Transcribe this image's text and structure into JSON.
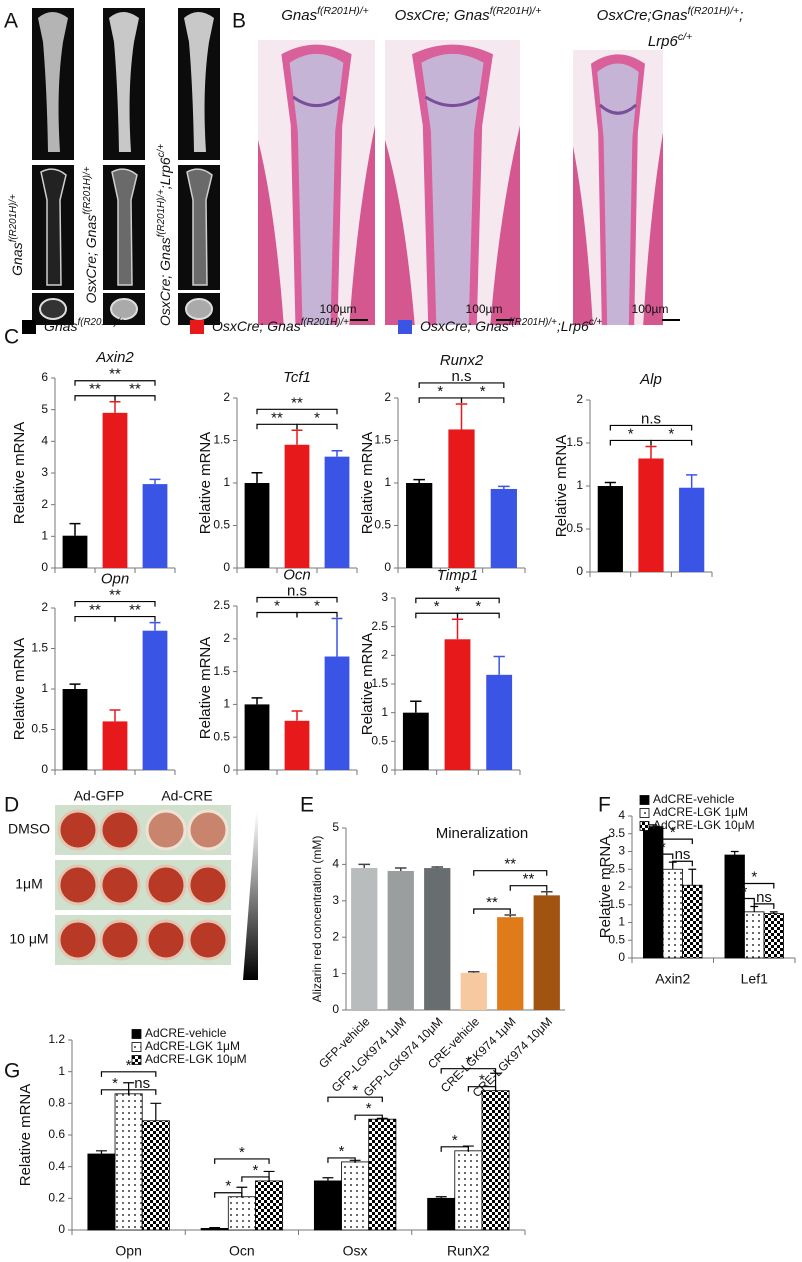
{
  "panel_labels": [
    "A",
    "B",
    "C",
    "D",
    "E",
    "F",
    "G"
  ],
  "panel_a": {
    "labels": [
      [
        "Gnas",
        "f(R201H)/+"
      ],
      [
        "OsxCre; Gnas",
        "f(R201H)/+"
      ],
      [
        "OsxCre; Gnas",
        "f(R201H)/+",
        ";Lrp6",
        "c/+"
      ]
    ]
  },
  "panel_b": {
    "captions": [
      [
        [
          "Gnas",
          "f(R201H)/+"
        ]
      ],
      [
        [
          "OsxCre; Gnas",
          "f(R201H)/+"
        ]
      ],
      [
        [
          "OsxCre;Gnas",
          "f(R201H)/+",
          ";"
        ],
        [
          "Lrp6",
          "c/+"
        ]
      ]
    ],
    "scale_bar": "100µm"
  },
  "panel_c": {
    "legend": [
      {
        "name": [
          "Gnas",
          "f(R201H)/+"
        ],
        "color": "#000000"
      },
      {
        "name": [
          "OsxCre; Gnas",
          "f(R201H)/+"
        ],
        "color": "#e8191b"
      },
      {
        "name": [
          "OsxCre; Gnas",
          "f(R201H)/+",
          ";Lrp6",
          "c/+"
        ],
        "color": "#3a55e6"
      }
    ]
  },
  "panel_d": {
    "columns": [
      "Ad-GFP",
      "Ad-CRE"
    ],
    "rows": [
      "DMSO",
      "1μM",
      "10 μM"
    ]
  },
  "chart_data": [
    {
      "type": "bar",
      "title": "Axin2",
      "y_label": "Relative mRNA",
      "values": [
        1.02,
        4.9,
        2.65
      ],
      "errors": [
        0.38,
        0.35,
        0.15
      ],
      "ylim": [
        0,
        6
      ],
      "yticks": [
        0,
        1,
        2,
        3,
        4,
        5,
        6
      ],
      "brackets": [
        "**",
        "**",
        "**"
      ]
    },
    {
      "type": "bar",
      "title": "Tcf1",
      "y_label": "Relative mRNA",
      "values": [
        1.0,
        1.45,
        1.31
      ],
      "errors": [
        0.12,
        0.17,
        0.07
      ],
      "ylim": [
        0,
        2
      ],
      "yticks": [
        0,
        0.5,
        1,
        1.5,
        2
      ],
      "brackets": [
        "**",
        "*",
        "**"
      ]
    },
    {
      "type": "bar",
      "title": "Runx2",
      "y_label": "Relative mRNA",
      "values": [
        1.0,
        1.63,
        0.93
      ],
      "errors": [
        0.04,
        0.3,
        0.03
      ],
      "ylim": [
        0,
        2
      ],
      "yticks": [
        0,
        0.5,
        1,
        1.5,
        2
      ],
      "brackets": [
        "*",
        "*",
        "n.s"
      ]
    },
    {
      "type": "bar",
      "title": "Alp",
      "y_label": "Relative mRNA",
      "values": [
        1.0,
        1.32,
        0.98
      ],
      "errors": [
        0.04,
        0.14,
        0.15
      ],
      "ylim": [
        0,
        2
      ],
      "yticks": [
        0,
        0.5,
        1,
        1.5,
        2
      ],
      "brackets": [
        "*",
        "*",
        "n.s"
      ]
    },
    {
      "type": "bar",
      "title": "Opn",
      "y_label": "Relative mRNA",
      "values": [
        1.0,
        0.6,
        1.72
      ],
      "errors": [
        0.06,
        0.14,
        0.1
      ],
      "ylim": [
        0,
        2
      ],
      "yticks": [
        0,
        0.5,
        1,
        1.5,
        2
      ],
      "brackets": [
        "**",
        "**",
        "**"
      ]
    },
    {
      "type": "bar",
      "title": "Ocn",
      "y_label": "Relative mRNA",
      "values": [
        1.0,
        0.75,
        1.73
      ],
      "errors": [
        0.1,
        0.15,
        0.58
      ],
      "ylim": [
        0,
        2.5
      ],
      "yticks": [
        0,
        0.5,
        1,
        1.5,
        2,
        2.5
      ],
      "brackets": [
        "*",
        "*",
        "n.s"
      ]
    },
    {
      "type": "bar",
      "title": "Timp1",
      "y_label": "Relative mRNA",
      "values": [
        1.0,
        2.28,
        1.66
      ],
      "errors": [
        0.2,
        0.35,
        0.32
      ],
      "ylim": [
        0,
        3
      ],
      "yticks": [
        0,
        0.5,
        1,
        1.5,
        2,
        2.5,
        3
      ],
      "brackets": [
        "*",
        "*",
        "*"
      ]
    },
    {
      "type": "bar",
      "title": "Mineralization",
      "y_label": "Alizarin red concentration (mM)",
      "categories": [
        "GFP-vehicle",
        "GFP-LGK974 1μM",
        "GFP-LGK974 10μM",
        "CRE-vehicle",
        "CRE-LGK974 1μM",
        "CRE-LGK974 10μM"
      ],
      "values": [
        3.9,
        3.82,
        3.9,
        1.02,
        2.55,
        3.15
      ],
      "errors": [
        0.1,
        0.08,
        0.03,
        0.03,
        0.06,
        0.1
      ],
      "colors": [
        "#b8bcbc",
        "#9a9e9e",
        "#686e70",
        "#f7c9a0",
        "#e07b1a",
        "#a0540f"
      ],
      "ylim": [
        0,
        5
      ],
      "yticks": [
        0,
        1,
        2,
        3,
        4,
        5
      ],
      "brackets": [
        "**",
        "**",
        "**"
      ]
    },
    {
      "type": "grouped_bar",
      "y_label": "Relative mRNA",
      "categories": [
        "Axin2",
        "Lef1"
      ],
      "legend": "upper left",
      "series": [
        {
          "name": "AdCRE-vehicle",
          "color": "#000000",
          "pattern": "solid",
          "values": [
            3.7,
            2.9
          ],
          "errors": [
            0.05,
            0.1
          ]
        },
        {
          "name": "AdCRE-LGK 1μM",
          "color": "#ffffff",
          "pattern": "dots",
          "values": [
            2.5,
            1.3
          ],
          "errors": [
            0.2,
            0.15
          ]
        },
        {
          "name": "AdCRE-LGK 10μM",
          "color": "#ffffff",
          "pattern": "checker",
          "values": [
            2.05,
            1.25
          ],
          "errors": [
            0.45,
            0.05
          ]
        }
      ],
      "ylim": [
        0,
        4
      ],
      "yticks": [
        0,
        0.5,
        1,
        1.5,
        2,
        2.5,
        3,
        3.5,
        4
      ],
      "brackets": [
        [
          "*",
          "*",
          "ns"
        ],
        [
          "*",
          "*",
          "ns"
        ]
      ]
    },
    {
      "type": "grouped_bar",
      "y_label": "Relative mRNA",
      "categories": [
        "Opn",
        "Ocn",
        "Osx",
        "RunX2"
      ],
      "legend": "upper left",
      "series": [
        {
          "name": "AdCRE-vehicle",
          "color": "#000000",
          "pattern": "solid",
          "values": [
            0.48,
            0.01,
            0.31,
            0.2
          ],
          "errors": [
            0.02,
            0.005,
            0.02,
            0.01
          ]
        },
        {
          "name": "AdCRE-LGK 1μM",
          "color": "#ffffff",
          "pattern": "dots",
          "values": [
            0.86,
            0.21,
            0.43,
            0.5
          ],
          "errors": [
            0.07,
            0.06,
            0.01,
            0.03
          ]
        },
        {
          "name": "AdCRE-LGK 10μM",
          "color": "#ffffff",
          "pattern": "checker",
          "values": [
            0.69,
            0.31,
            0.7,
            0.88
          ],
          "errors": [
            0.11,
            0.06,
            0.005,
            0.11
          ]
        }
      ],
      "ylim": [
        0,
        1.2
      ],
      "yticks": [
        0,
        0.2,
        0.4,
        0.6,
        0.8,
        1,
        1.2
      ],
      "brackets": [
        [
          "*",
          "*",
          "ns"
        ],
        [
          "*",
          "*",
          "*"
        ],
        [
          "*",
          "*",
          "*"
        ],
        [
          "*",
          "*",
          "*"
        ]
      ]
    }
  ]
}
